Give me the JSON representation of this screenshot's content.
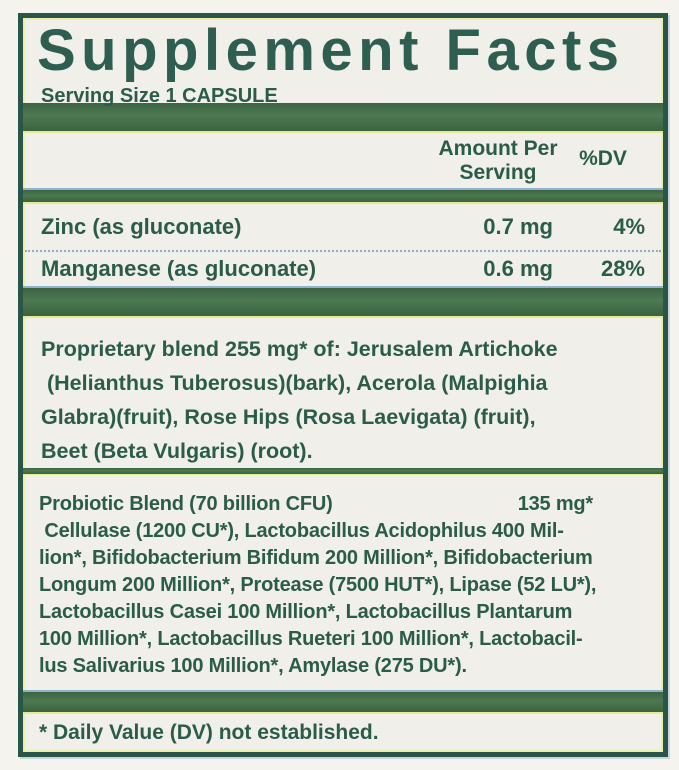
{
  "label": {
    "title": "Supplement Facts",
    "serving_size": "Serving Size 1 CAPSULE",
    "columns": {
      "amount_header": "Amount Per Serving",
      "dv_header": "%DV"
    },
    "nutrients": [
      {
        "name": "Zinc (as gluconate)",
        "amount": "0.7 mg",
        "dv": "4%"
      },
      {
        "name": "Manganese (as gluconate)",
        "amount": "0.6 mg",
        "dv": "28%"
      }
    ],
    "proprietary_blend": {
      "lines": [
        "Proprietary blend 255 mg* of: Jerusalem Artichoke",
        " (Helianthus Tuberosus)(bark), Acerola (Malpighia",
        "Glabra)(fruit), Rose Hips (Rosa Laevigata) (fruit),",
        "Beet (Beta Vulgaris) (root)."
      ]
    },
    "probiotic_blend": {
      "name": "Probiotic Blend (70 billion CFU)",
      "amount": "135 mg*",
      "lines": [
        " Cellulase (1200 CU*), Lactobacillus Acidophilus 400 Mil-",
        "lion*, Bifidobacterium Bifidum 200 Million*, Bifidobacterium",
        "Longum 200 Million*, Protease (7500 HUT*), Lipase (52 LU*),",
        "Lactobacillus Casei 100 Million*, Lactobacillus Plantarum",
        "100 Million*, Lactobacillus Rueteri 100 Million*, Lactobacil-",
        "lus Salivarius 100 Million*, Amylase (275 DU*)."
      ]
    },
    "footnote": "* Daily Value (DV) not established."
  },
  "colors": {
    "bar_green": "#446e48",
    "border_green": "#2a564a",
    "text_green": "#2b5c4a",
    "edge_yellow": "#e7ea8f",
    "edge_blue": "#8fb2cd",
    "paper": "#f0efe9",
    "page_bg": "#f4f3ee",
    "divider_dot": "#93aabe"
  }
}
